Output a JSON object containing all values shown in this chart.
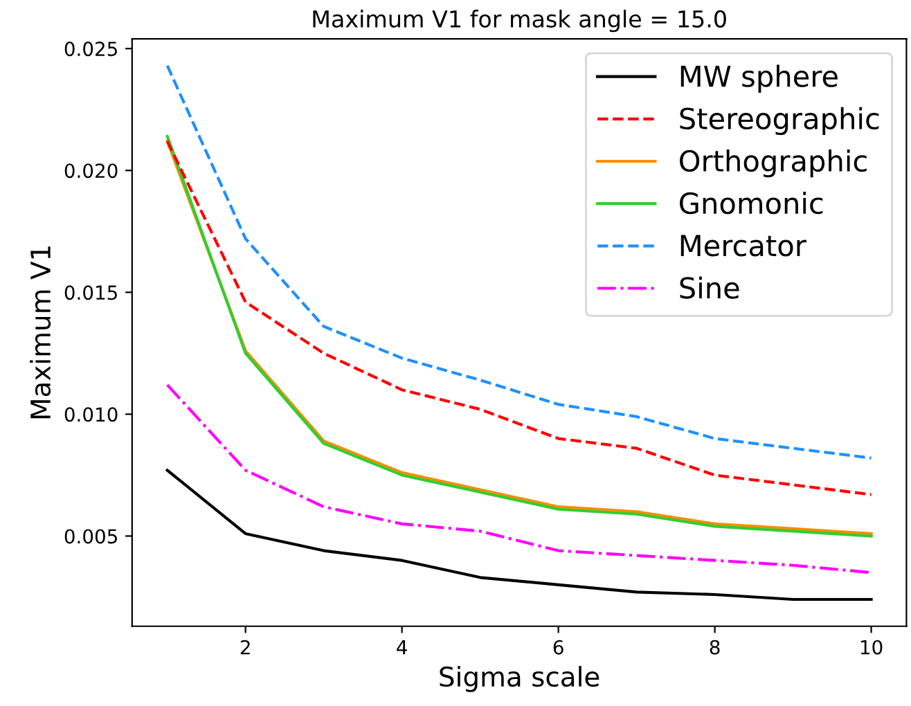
{
  "chart_data": {
    "type": "line",
    "title": "Maximum V1 for mask angle = 15.0",
    "xlabel": "Sigma scale",
    "ylabel": "Maximum V1",
    "x": [
      1,
      2,
      3,
      4,
      5,
      6,
      7,
      8,
      9,
      10
    ],
    "series": [
      {
        "name": "MW sphere",
        "color": "#000000",
        "line_style": "solid",
        "values": [
          0.0077,
          0.0051,
          0.0044,
          0.004,
          0.0033,
          0.003,
          0.0027,
          0.0026,
          0.0024,
          0.0024
        ]
      },
      {
        "name": "Stereographic",
        "color": "#ff0000",
        "line_style": "dashed",
        "values": [
          0.0212,
          0.0146,
          0.0125,
          0.011,
          0.0102,
          0.009,
          0.0086,
          0.0075,
          0.0071,
          0.0067
        ]
      },
      {
        "name": "Orthographic",
        "color": "#ff8c00",
        "line_style": "solid",
        "values": [
          0.0212,
          0.0126,
          0.0089,
          0.0076,
          0.0069,
          0.0062,
          0.006,
          0.0055,
          0.0053,
          0.0051
        ]
      },
      {
        "name": "Gnomonic",
        "color": "#32cd32",
        "line_style": "solid",
        "values": [
          0.0214,
          0.0125,
          0.0088,
          0.0075,
          0.0068,
          0.0061,
          0.0059,
          0.0054,
          0.0052,
          0.005
        ]
      },
      {
        "name": "Mercator",
        "color": "#1e90ff",
        "line_style": "dashed",
        "values": [
          0.0243,
          0.0172,
          0.0136,
          0.0123,
          0.0114,
          0.0104,
          0.0099,
          0.009,
          0.0086,
          0.0082
        ]
      },
      {
        "name": "Sine",
        "color": "#ff00ff",
        "line_style": "dashdot",
        "values": [
          0.0112,
          0.0077,
          0.0062,
          0.0055,
          0.0052,
          0.0044,
          0.0042,
          0.004,
          0.0038,
          0.0035
        ]
      }
    ],
    "xlim": [
      0.55,
      10.45
    ],
    "xticks": [
      2,
      4,
      6,
      8,
      10
    ],
    "ylim": [
      0.0013,
      0.0254
    ],
    "yticks": [
      {
        "value": 0.005,
        "label": "0.005"
      },
      {
        "value": 0.01,
        "label": "0.010"
      },
      {
        "value": 0.015,
        "label": "0.015"
      },
      {
        "value": 0.02,
        "label": "0.020"
      },
      {
        "value": 0.025,
        "label": "0.025"
      }
    ],
    "legend": "top right",
    "grid": false,
    "marker": "none"
  }
}
